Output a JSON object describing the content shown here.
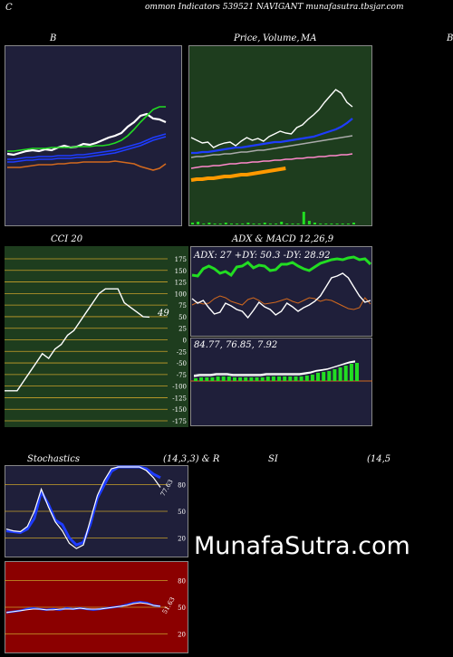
{
  "header": {
    "left_letter": "C",
    "title": "ommon  Indicators 539521 NAVIGANT munafasutra.tbsjar.com"
  },
  "panels": {
    "bollinger_label": "B",
    "price_label_a": "Price,",
    "price_label_b": "Volume,",
    "price_label_c": "MA",
    "right_edge_letter": "B",
    "cci_label": "CCI 20",
    "adx_label": "ADX  & MACD 12,26,9",
    "adx_readout": "ADX: 27 +DY: 50.3 -DY: 28.92",
    "macd_readout": "84.77,  76.85,  7.92",
    "stoch_label": "Stochastics",
    "stoch_params": "(14,3,3) & R",
    "si_label": "SI",
    "si_params": "(14,5"
  },
  "colors": {
    "navy_bg": "#1f1f3a",
    "green_bg": "#1e3d1e",
    "red_bg": "#8b0000",
    "orange": "#d2691e",
    "blue": "#1e3cff",
    "green_line": "#22dd22",
    "pink": "#ff88cc",
    "white": "#ffffff"
  },
  "chart_data": [
    {
      "type": "line",
      "name": "bollinger",
      "series": [
        {
          "color": "#ffffff",
          "values": [
            170,
            171,
            169,
            167,
            166,
            167,
            165,
            166,
            163,
            161,
            163,
            162,
            159,
            160,
            158,
            155,
            152,
            150,
            147,
            140,
            135,
            128,
            126,
            131,
            132,
            135
          ]
        },
        {
          "color": "#22dd22",
          "values": [
            167,
            167,
            166,
            165,
            164,
            164,
            164,
            163,
            163,
            163,
            163,
            162,
            162,
            162,
            161,
            161,
            160,
            158,
            155,
            150,
            143,
            135,
            128,
            121,
            118,
            118
          ]
        },
        {
          "color": "#1e3cff",
          "values": [
            176,
            176,
            175,
            174,
            174,
            173,
            173,
            173,
            172,
            172,
            172,
            171,
            171,
            170,
            169,
            168,
            167,
            166,
            164,
            162,
            160,
            158,
            155,
            152,
            150,
            148
          ]
        },
        {
          "color": "#1e3cff",
          "values": [
            179,
            179,
            178,
            177,
            177,
            176,
            176,
            176,
            175,
            175,
            175,
            174,
            174,
            173,
            172,
            171,
            170,
            169,
            167,
            165,
            163,
            161,
            158,
            155,
            153,
            151
          ]
        },
        {
          "color": "#d2691e",
          "values": [
            185,
            185,
            185,
            184,
            183,
            182,
            182,
            182,
            181,
            181,
            180,
            180,
            179,
            179,
            179,
            179,
            179,
            178,
            179,
            180,
            181,
            184,
            186,
            188,
            186,
            181
          ]
        }
      ]
    },
    {
      "type": "line",
      "name": "price-volume-ma",
      "series": [
        {
          "color": "#ffffff",
          "values": [
            152,
            155,
            158,
            157,
            163,
            160,
            158,
            157,
            161,
            156,
            152,
            155,
            153,
            156,
            151,
            148,
            145,
            147,
            148,
            141,
            138,
            132,
            127,
            121,
            113,
            106,
            99,
            103,
            113,
            118
          ]
        },
        {
          "color": "#1e3cff",
          "values": [
            169,
            169,
            168,
            168,
            167,
            166,
            165,
            164,
            163,
            163,
            162,
            161,
            160,
            159,
            158,
            157,
            157,
            156,
            155,
            154,
            153,
            152,
            151,
            149,
            147,
            145,
            143,
            140,
            136,
            131
          ]
        },
        {
          "color": "#aaaaaa",
          "values": [
            174,
            173,
            173,
            172,
            171,
            171,
            170,
            170,
            169,
            168,
            168,
            167,
            166,
            166,
            165,
            164,
            163,
            162,
            161,
            160,
            159,
            158,
            157,
            156,
            155,
            154,
            153,
            152,
            151,
            150
          ]
        },
        {
          "color": "#ff88cc",
          "values": [
            186,
            185,
            184,
            184,
            183,
            183,
            182,
            181,
            181,
            180,
            180,
            179,
            179,
            178,
            178,
            177,
            177,
            176,
            176,
            175,
            175,
            174,
            174,
            173,
            173,
            172,
            172,
            171,
            171,
            170
          ]
        },
        {
          "color": "#ff9900",
          "values": [
            199,
            198,
            198,
            197,
            197,
            196,
            195,
            195,
            194,
            193,
            193,
            192,
            191,
            190,
            189,
            188,
            187,
            186
          ]
        }
      ],
      "volume": [
        2,
        3,
        1,
        2,
        1,
        1,
        2,
        1,
        1,
        1,
        2,
        1,
        1,
        2,
        1,
        1,
        3,
        1,
        1,
        1,
        14,
        4,
        2,
        1,
        1,
        1,
        1,
        1,
        1,
        2
      ]
    },
    {
      "type": "line",
      "name": "cci",
      "ylim": [
        -175,
        175
      ],
      "ticks": [
        "175",
        "150",
        "125",
        "100",
        "75",
        "50",
        "25",
        "0",
        "-25",
        "-50",
        "-75",
        "-100",
        "-125",
        "-150",
        "-175"
      ],
      "last_value_label": "49",
      "values": [
        -110,
        -110,
        -110,
        -90,
        -70,
        -50,
        -30,
        -40,
        -20,
        -10,
        10,
        20,
        40,
        60,
        80,
        100,
        110,
        110,
        110,
        80,
        70,
        60,
        50,
        49
      ]
    },
    {
      "type": "line",
      "name": "adx",
      "series": [
        {
          "color": "#22dd22",
          "values": [
            32,
            33,
            25,
            22,
            25,
            30,
            28,
            32,
            23,
            22,
            18,
            24,
            21,
            22,
            27,
            26,
            20,
            20,
            18,
            22,
            25,
            27,
            23,
            19,
            17,
            15,
            14,
            15,
            13,
            12,
            15,
            14,
            20
          ]
        },
        {
          "color": "#d2691e",
          "values": [
            65,
            62,
            64,
            63,
            58,
            55,
            57,
            61,
            63,
            65,
            59,
            57,
            60,
            64,
            63,
            62,
            60,
            58,
            61,
            63,
            60,
            57,
            58,
            61,
            59,
            60,
            63,
            66,
            69,
            70,
            68,
            57,
            64
          ]
        },
        {
          "color": "#ffffff",
          "values": [
            58,
            63,
            60,
            68,
            75,
            73,
            63,
            66,
            70,
            72,
            79,
            71,
            62,
            67,
            70,
            76,
            72,
            63,
            67,
            72,
            68,
            65,
            61,
            55,
            45,
            35,
            33,
            30,
            35,
            45,
            55,
            62,
            60
          ]
        }
      ]
    },
    {
      "type": "bar",
      "name": "macd",
      "values": [
        3,
        4,
        4,
        4,
        5,
        5,
        5,
        4,
        4,
        4,
        4,
        4,
        4,
        5,
        5,
        5,
        5,
        5,
        5,
        5,
        6,
        7,
        9,
        10,
        11,
        13,
        15,
        17,
        19,
        20
      ]
    },
    {
      "type": "line",
      "name": "stochastics",
      "value_label": "77.63",
      "ticks": [
        "80",
        "50",
        "20"
      ],
      "series": [
        {
          "color": "#1e3cff",
          "values": [
            28,
            27,
            26,
            30,
            42,
            72,
            58,
            40,
            35,
            20,
            12,
            15,
            35,
            65,
            80,
            95,
            100,
            100,
            100,
            100,
            98,
            92,
            88
          ]
        },
        {
          "color": "#ffffff",
          "values": [
            30,
            28,
            27,
            33,
            50,
            75,
            55,
            38,
            28,
            14,
            8,
            12,
            40,
            68,
            85,
            98,
            100,
            100,
            100,
            100,
            96,
            88,
            77
          ]
        }
      ]
    },
    {
      "type": "line",
      "name": "rsi",
      "value_label": "51.63",
      "ticks": [
        "80",
        "50",
        "20"
      ],
      "series": [
        {
          "color": "#1e3cff",
          "values": [
            44,
            45,
            46,
            48,
            49,
            48,
            47,
            48,
            47,
            49,
            48,
            49,
            48,
            47,
            48,
            49,
            50,
            51,
            53,
            55,
            56,
            55,
            52,
            51
          ]
        },
        {
          "color": "#ffffff",
          "values": [
            44,
            45,
            46,
            47,
            48,
            48,
            47,
            47,
            48,
            48,
            48,
            49,
            48,
            48,
            48,
            49,
            50,
            51,
            52,
            54,
            55,
            54,
            52,
            51
          ]
        }
      ]
    }
  ]
}
